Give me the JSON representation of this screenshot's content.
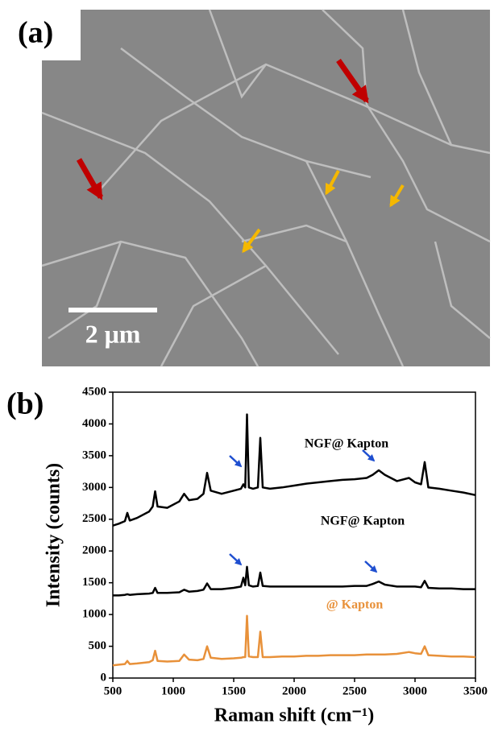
{
  "panel_a": {
    "label": "(a)",
    "scale_bar": "2 μm"
  },
  "chart_data": {
    "type": "line",
    "panel_label": "(b)",
    "x_label": "Raman shift (cm⁻¹)",
    "y_label": "Intensity (counts)",
    "xlim": [
      500,
      3500
    ],
    "xticks": [
      500,
      1000,
      1500,
      2000,
      2500,
      3000,
      3500
    ],
    "ylim": [
      0,
      4500
    ],
    "yticks": [
      0,
      500,
      1000,
      1500,
      2000,
      2500,
      3000,
      3500,
      4000,
      4500
    ],
    "x": [
      500,
      550,
      600,
      620,
      640,
      700,
      800,
      830,
      850,
      870,
      950,
      1050,
      1090,
      1130,
      1200,
      1250,
      1280,
      1310,
      1400,
      1500,
      1560,
      1580,
      1595,
      1610,
      1625,
      1660,
      1700,
      1720,
      1740,
      1800,
      1900,
      2000,
      2100,
      2200,
      2300,
      2400,
      2500,
      2600,
      2650,
      2700,
      2750,
      2850,
      2950,
      3000,
      3050,
      3080,
      3110,
      3200,
      3300,
      3400,
      3500
    ],
    "series": [
      {
        "name": "NGF@ Kapton",
        "color": "#000000",
        "values": [
          2400,
          2430,
          2470,
          2600,
          2480,
          2520,
          2620,
          2700,
          2940,
          2700,
          2680,
          2780,
          2900,
          2800,
          2820,
          2900,
          3230,
          2950,
          2900,
          2950,
          2980,
          3050,
          3000,
          4150,
          3000,
          2980,
          3000,
          3780,
          3000,
          2980,
          3000,
          3030,
          3060,
          3080,
          3100,
          3120,
          3130,
          3150,
          3200,
          3270,
          3200,
          3100,
          3150,
          3080,
          3050,
          3400,
          3000,
          2980,
          2950,
          2920,
          2880
        ]
      },
      {
        "name": "NGF@ Kapton",
        "color": "#000000",
        "values": [
          1300,
          1300,
          1310,
          1320,
          1310,
          1320,
          1330,
          1340,
          1420,
          1340,
          1340,
          1350,
          1390,
          1360,
          1370,
          1390,
          1490,
          1400,
          1400,
          1420,
          1440,
          1580,
          1460,
          1750,
          1460,
          1440,
          1450,
          1660,
          1450,
          1440,
          1440,
          1440,
          1440,
          1440,
          1440,
          1440,
          1450,
          1450,
          1480,
          1520,
          1470,
          1440,
          1440,
          1440,
          1430,
          1530,
          1420,
          1410,
          1410,
          1400,
          1400
        ]
      },
      {
        "name": "@ Kapton",
        "color": "#e8913a",
        "values": [
          200,
          210,
          220,
          270,
          220,
          230,
          250,
          280,
          430,
          270,
          260,
          270,
          370,
          290,
          280,
          300,
          500,
          320,
          300,
          310,
          320,
          330,
          330,
          980,
          340,
          330,
          330,
          730,
          330,
          330,
          340,
          340,
          350,
          350,
          360,
          360,
          360,
          370,
          370,
          370,
          370,
          380,
          410,
          390,
          380,
          500,
          360,
          350,
          340,
          340,
          330
        ]
      }
    ]
  }
}
